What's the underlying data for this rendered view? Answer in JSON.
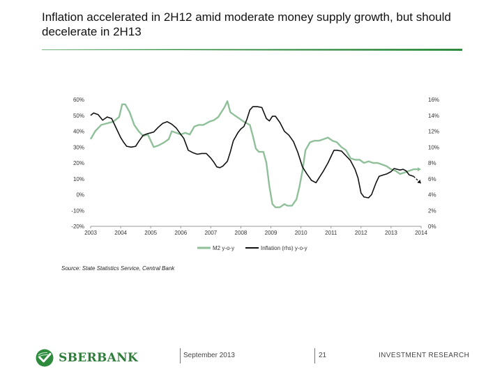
{
  "header": {
    "title": "Inflation accelerated in 2H12 amid moderate money supply growth, but should decelerate in 2H13"
  },
  "colors": {
    "accent_green": "#2e8b3e",
    "m2_series": "#8fc09a",
    "inflation_series": "#111111",
    "grid": "#d9d9d9"
  },
  "chart_data": {
    "type": "line",
    "x_ticks": [
      "2003",
      "2004",
      "2005",
      "2006",
      "2007",
      "2008",
      "2009",
      "2010",
      "2011",
      "2012",
      "2013",
      "2014"
    ],
    "xlim": [
      2003,
      2014
    ],
    "y_left": {
      "ticks": [
        "60%",
        "50%",
        "40%",
        "30%",
        "20%",
        "10%",
        "0%",
        "-10%",
        "-20%"
      ],
      "ylim": [
        -20,
        60
      ]
    },
    "y_right": {
      "ticks": [
        "16%",
        "14%",
        "12%",
        "10%",
        "8%",
        "6%",
        "4%",
        "2%",
        "0%"
      ],
      "ylim": [
        0,
        16
      ]
    },
    "grid": false,
    "legend_position": "bottom",
    "series": [
      {
        "name": "M2 y-o-y",
        "axis": "left",
        "color": "#8fc09a",
        "points": [
          [
            2003.0,
            35
          ],
          [
            2003.15,
            40
          ],
          [
            2003.35,
            44
          ],
          [
            2003.55,
            45
          ],
          [
            2003.75,
            46
          ],
          [
            2003.95,
            49
          ],
          [
            2004.05,
            57
          ],
          [
            2004.15,
            57
          ],
          [
            2004.3,
            52
          ],
          [
            2004.45,
            44
          ],
          [
            2004.6,
            40
          ],
          [
            2004.75,
            37
          ],
          [
            2004.9,
            38
          ],
          [
            2005.0,
            34
          ],
          [
            2005.1,
            30
          ],
          [
            2005.25,
            31
          ],
          [
            2005.45,
            33
          ],
          [
            2005.6,
            35
          ],
          [
            2005.7,
            40
          ],
          [
            2005.85,
            39
          ],
          [
            2006.0,
            38
          ],
          [
            2006.15,
            39
          ],
          [
            2006.3,
            38
          ],
          [
            2006.45,
            43
          ],
          [
            2006.6,
            44
          ],
          [
            2006.75,
            44
          ],
          [
            2006.95,
            46
          ],
          [
            2007.1,
            47
          ],
          [
            2007.25,
            49
          ],
          [
            2007.35,
            52
          ],
          [
            2007.45,
            55
          ],
          [
            2007.55,
            59
          ],
          [
            2007.65,
            52
          ],
          [
            2007.8,
            50
          ],
          [
            2007.95,
            48
          ],
          [
            2008.1,
            46
          ],
          [
            2008.3,
            44
          ],
          [
            2008.4,
            37
          ],
          [
            2008.5,
            29
          ],
          [
            2008.6,
            27
          ],
          [
            2008.75,
            27
          ],
          [
            2008.85,
            20
          ],
          [
            2008.95,
            5
          ],
          [
            2009.05,
            -6
          ],
          [
            2009.15,
            -8
          ],
          [
            2009.3,
            -8
          ],
          [
            2009.45,
            -6
          ],
          [
            2009.55,
            -7
          ],
          [
            2009.7,
            -7
          ],
          [
            2009.85,
            -3
          ],
          [
            2009.95,
            5
          ],
          [
            2010.05,
            15
          ],
          [
            2010.15,
            28
          ],
          [
            2010.3,
            33
          ],
          [
            2010.45,
            34
          ],
          [
            2010.6,
            34
          ],
          [
            2010.75,
            35
          ],
          [
            2010.9,
            36
          ],
          [
            2011.05,
            34
          ],
          [
            2011.2,
            33
          ],
          [
            2011.35,
            30
          ],
          [
            2011.5,
            28
          ],
          [
            2011.65,
            23
          ],
          [
            2011.8,
            22
          ],
          [
            2011.95,
            22
          ],
          [
            2012.1,
            20
          ],
          [
            2012.25,
            21
          ],
          [
            2012.4,
            20
          ],
          [
            2012.55,
            20
          ],
          [
            2012.7,
            19
          ],
          [
            2012.85,
            18
          ],
          [
            2013.0,
            16
          ],
          [
            2013.15,
            15
          ],
          [
            2013.3,
            13
          ],
          [
            2013.45,
            14
          ],
          [
            2013.6,
            15
          ],
          [
            2013.75,
            16
          ],
          [
            2013.9,
            16
          ]
        ],
        "forecast": [
          [
            2013.9,
            16
          ],
          [
            2014.0,
            16
          ]
        ]
      },
      {
        "name": "Inflation (rhs) y-o-y",
        "axis": "right",
        "color": "#111111",
        "points": [
          [
            2003.0,
            14.0
          ],
          [
            2003.1,
            14.3
          ],
          [
            2003.25,
            14.1
          ],
          [
            2003.4,
            13.4
          ],
          [
            2003.55,
            13.8
          ],
          [
            2003.7,
            13.6
          ],
          [
            2003.85,
            12.4
          ],
          [
            2004.0,
            11.2
          ],
          [
            2004.1,
            10.6
          ],
          [
            2004.2,
            10.1
          ],
          [
            2004.35,
            10.0
          ],
          [
            2004.5,
            10.1
          ],
          [
            2004.6,
            10.7
          ],
          [
            2004.75,
            11.5
          ],
          [
            2004.9,
            11.7
          ],
          [
            2005.0,
            11.8
          ],
          [
            2005.1,
            11.9
          ],
          [
            2005.25,
            12.5
          ],
          [
            2005.4,
            13.0
          ],
          [
            2005.55,
            13.2
          ],
          [
            2005.7,
            12.9
          ],
          [
            2005.85,
            12.4
          ],
          [
            2006.0,
            11.6
          ],
          [
            2006.1,
            11.1
          ],
          [
            2006.25,
            9.6
          ],
          [
            2006.4,
            9.3
          ],
          [
            2006.55,
            9.1
          ],
          [
            2006.7,
            9.2
          ],
          [
            2006.85,
            9.2
          ],
          [
            2007.0,
            8.6
          ],
          [
            2007.1,
            8.1
          ],
          [
            2007.2,
            7.5
          ],
          [
            2007.3,
            7.4
          ],
          [
            2007.4,
            7.6
          ],
          [
            2007.55,
            8.2
          ],
          [
            2007.65,
            9.4
          ],
          [
            2007.75,
            10.8
          ],
          [
            2007.9,
            11.8
          ],
          [
            2008.0,
            12.3
          ],
          [
            2008.1,
            12.6
          ],
          [
            2008.2,
            13.5
          ],
          [
            2008.3,
            14.7
          ],
          [
            2008.4,
            15.1
          ],
          [
            2008.55,
            15.1
          ],
          [
            2008.7,
            15.0
          ],
          [
            2008.85,
            13.6
          ],
          [
            2008.95,
            13.3
          ],
          [
            2009.05,
            13.9
          ],
          [
            2009.15,
            13.9
          ],
          [
            2009.3,
            13.1
          ],
          [
            2009.45,
            12.0
          ],
          [
            2009.6,
            11.5
          ],
          [
            2009.75,
            10.7
          ],
          [
            2009.9,
            9.3
          ],
          [
            2010.05,
            7.5
          ],
          [
            2010.2,
            6.6
          ],
          [
            2010.35,
            5.8
          ],
          [
            2010.5,
            5.5
          ],
          [
            2010.6,
            6.1
          ],
          [
            2010.75,
            7.0
          ],
          [
            2010.9,
            8.0
          ],
          [
            2011.0,
            8.8
          ],
          [
            2011.1,
            9.6
          ],
          [
            2011.2,
            9.6
          ],
          [
            2011.35,
            9.5
          ],
          [
            2011.5,
            8.9
          ],
          [
            2011.65,
            8.3
          ],
          [
            2011.8,
            7.2
          ],
          [
            2011.9,
            6.1
          ],
          [
            2012.0,
            4.2
          ],
          [
            2012.1,
            3.7
          ],
          [
            2012.25,
            3.6
          ],
          [
            2012.35,
            4.0
          ],
          [
            2012.5,
            5.5
          ],
          [
            2012.6,
            6.3
          ],
          [
            2012.75,
            6.5
          ],
          [
            2012.85,
            6.6
          ],
          [
            2013.0,
            6.9
          ],
          [
            2013.1,
            7.3
          ],
          [
            2013.2,
            7.2
          ],
          [
            2013.3,
            7.1
          ],
          [
            2013.4,
            7.2
          ],
          [
            2013.5,
            7.0
          ],
          [
            2013.6,
            6.5
          ],
          [
            2013.75,
            6.3
          ]
        ],
        "forecast": [
          [
            2013.75,
            6.3
          ],
          [
            2014.0,
            5.4
          ]
        ]
      }
    ]
  },
  "source": "Source: State Statistics Service, Central Bank",
  "footer": {
    "logo_text": "SBERBANK",
    "date": "September 2013",
    "page_number": "21",
    "section": "INVESTMENT RESEARCH"
  }
}
